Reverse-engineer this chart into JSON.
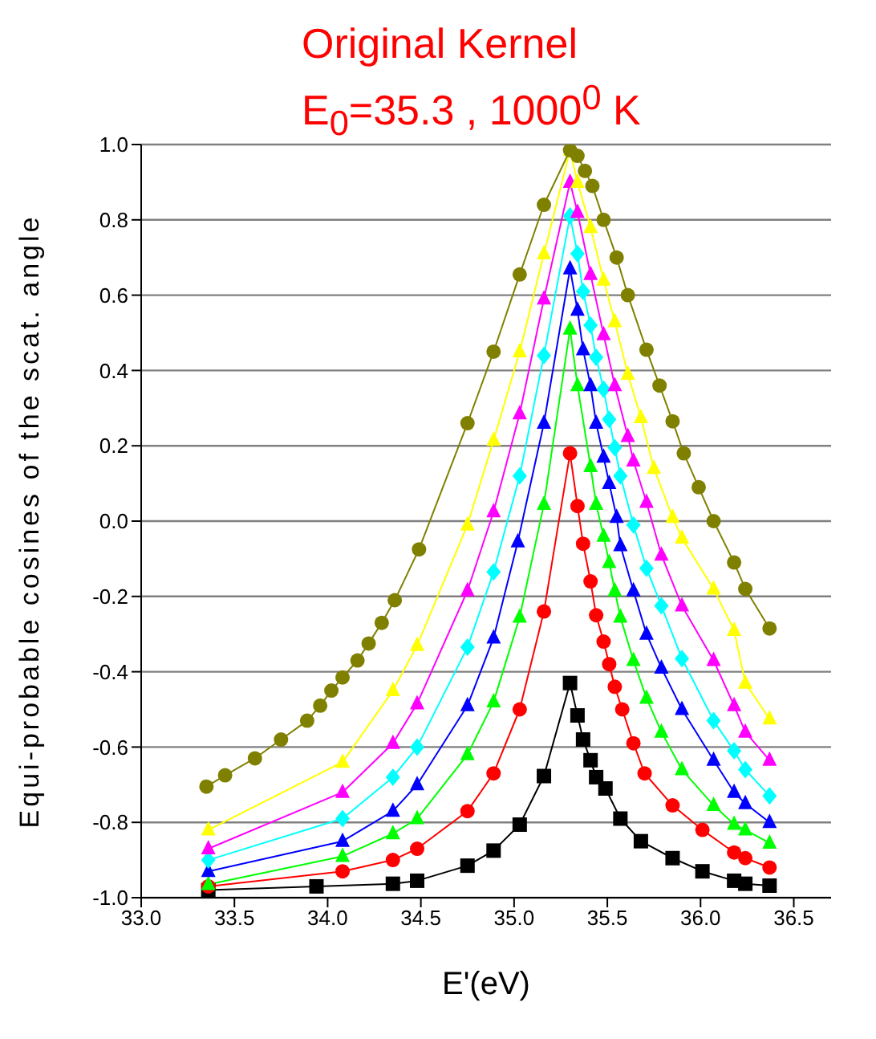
{
  "chart_data": {
    "type": "line",
    "title": "Original Kernel",
    "subtitle": "E$_{0}$=35.3 , 1000$^{0}$ K",
    "xlabel": "E'(eV)",
    "ylabel": "Equi-probable cosines of the scat. angle",
    "xlim": [
      33.0,
      36.7
    ],
    "ylim": [
      -1.0,
      1.0
    ],
    "xticks": [
      {
        "value": 33,
        "label": "33.0"
      },
      33.5,
      {
        "value": 34,
        "label": "34.0"
      },
      34.5,
      {
        "value": 35,
        "label": "35.0"
      },
      35.5,
      {
        "value": 36,
        "label": "36.0"
      },
      36.5
    ],
    "yticks": [
      {
        "value": -1,
        "label": "-1.0"
      },
      -0.8,
      -0.6,
      -0.4,
      -0.2,
      {
        "value": 0,
        "label": "0.0"
      },
      0.2,
      0.4,
      0.6,
      0.8,
      {
        "value": 1,
        "label": "1.0"
      }
    ],
    "grid": "y",
    "line_style": "solid",
    "series": [
      {
        "color": "#000000",
        "marker": "square",
        "x": [
          33.36,
          33.94,
          34.35,
          34.48,
          34.75,
          34.89,
          35.03,
          35.16,
          35.3,
          35.34,
          35.37,
          35.41,
          35.44,
          35.49,
          35.57,
          35.68,
          35.85,
          36.01,
          36.18,
          36.24,
          36.37
        ],
        "values": [
          -0.98,
          -0.97,
          -0.963,
          -0.955,
          -0.915,
          -0.875,
          -0.806,
          -0.677,
          -0.43,
          -0.516,
          -0.58,
          -0.635,
          -0.68,
          -0.71,
          -0.79,
          -0.85,
          -0.895,
          -0.93,
          -0.955,
          -0.963,
          -0.968
        ]
      },
      {
        "color": "#ff0000",
        "marker": "circle",
        "x": [
          33.36,
          34.08,
          34.35,
          34.48,
          34.75,
          34.89,
          35.03,
          35.16,
          35.3,
          35.34,
          35.37,
          35.41,
          35.44,
          35.48,
          35.51,
          35.54,
          35.58,
          35.64,
          35.7,
          35.85,
          36.01,
          36.18,
          36.24,
          36.37
        ],
        "values": [
          -0.97,
          -0.93,
          -0.9,
          -0.87,
          -0.77,
          -0.67,
          -0.5,
          -0.24,
          0.18,
          0.04,
          -0.06,
          -0.16,
          -0.25,
          -0.32,
          -0.38,
          -0.44,
          -0.5,
          -0.59,
          -0.67,
          -0.755,
          -0.82,
          -0.88,
          -0.895,
          -0.92
        ]
      },
      {
        "color": "#00ff00",
        "marker": "triangle",
        "x": [
          33.36,
          34.08,
          34.35,
          34.48,
          34.75,
          34.89,
          35.03,
          35.16,
          35.3,
          35.34,
          35.41,
          35.44,
          35.48,
          35.51,
          35.54,
          35.57,
          35.64,
          35.71,
          35.79,
          35.9,
          36.07,
          36.18,
          36.24,
          36.37
        ],
        "values": [
          -0.965,
          -0.89,
          -0.83,
          -0.79,
          -0.62,
          -0.48,
          -0.255,
          0.045,
          0.51,
          0.36,
          0.145,
          0.045,
          -0.04,
          -0.11,
          -0.185,
          -0.255,
          -0.37,
          -0.47,
          -0.56,
          -0.66,
          -0.755,
          -0.805,
          -0.82,
          -0.855
        ]
      },
      {
        "color": "#0000ff",
        "marker": "triangle",
        "x": [
          33.36,
          34.08,
          34.35,
          34.48,
          34.75,
          34.89,
          35.02,
          35.16,
          35.3,
          35.34,
          35.37,
          35.41,
          35.44,
          35.48,
          35.51,
          35.55,
          35.57,
          35.64,
          35.71,
          35.79,
          35.9,
          36.07,
          36.18,
          36.24,
          36.37
        ],
        "values": [
          -0.93,
          -0.85,
          -0.77,
          -0.7,
          -0.49,
          -0.31,
          -0.055,
          0.26,
          0.67,
          0.56,
          0.455,
          0.36,
          0.26,
          0.17,
          0.1,
          0.01,
          -0.065,
          -0.185,
          -0.3,
          -0.39,
          -0.5,
          -0.635,
          -0.72,
          -0.75,
          -0.8
        ]
      },
      {
        "color": "#00ffff",
        "marker": "diamond",
        "x": [
          33.36,
          34.08,
          34.35,
          34.48,
          34.75,
          34.89,
          35.03,
          35.16,
          35.3,
          35.34,
          35.37,
          35.41,
          35.44,
          35.48,
          35.51,
          35.54,
          35.57,
          35.64,
          35.71,
          35.79,
          35.9,
          36.07,
          36.18,
          36.24,
          36.37
        ],
        "values": [
          -0.9,
          -0.79,
          -0.68,
          -0.6,
          -0.335,
          -0.135,
          0.12,
          0.44,
          0.81,
          0.71,
          0.61,
          0.52,
          0.435,
          0.35,
          0.27,
          0.195,
          0.12,
          -0.01,
          -0.125,
          -0.225,
          -0.365,
          -0.53,
          -0.61,
          -0.66,
          -0.73
        ]
      },
      {
        "color": "#ff00ff",
        "marker": "triangle",
        "x": [
          33.36,
          34.08,
          34.35,
          34.48,
          34.75,
          34.89,
          35.03,
          35.16,
          35.3,
          35.34,
          35.41,
          35.48,
          35.54,
          35.61,
          35.64,
          35.71,
          35.79,
          35.9,
          36.07,
          36.18,
          36.24,
          36.37
        ],
        "values": [
          -0.87,
          -0.72,
          -0.59,
          -0.485,
          -0.185,
          0.025,
          0.285,
          0.59,
          0.9,
          0.82,
          0.655,
          0.495,
          0.36,
          0.225,
          0.16,
          0.05,
          -0.09,
          -0.225,
          -0.37,
          -0.49,
          -0.56,
          -0.635
        ]
      },
      {
        "color": "#ffff00",
        "marker": "triangle",
        "x": [
          33.36,
          34.08,
          34.35,
          34.48,
          34.75,
          34.89,
          35.03,
          35.16,
          35.3,
          35.34,
          35.41,
          35.48,
          35.54,
          35.61,
          35.68,
          35.75,
          35.85,
          35.9,
          36.07,
          36.18,
          36.24,
          36.37
        ],
        "values": [
          -0.82,
          -0.64,
          -0.45,
          -0.33,
          -0.01,
          0.215,
          0.45,
          0.71,
          0.985,
          0.9,
          0.78,
          0.64,
          0.53,
          0.39,
          0.275,
          0.14,
          0.01,
          -0.045,
          -0.18,
          -0.29,
          -0.43,
          -0.525
        ]
      },
      {
        "color": "#808000",
        "marker": "circle",
        "x": [
          33.35,
          33.45,
          33.61,
          33.75,
          33.89,
          33.96,
          34.02,
          34.08,
          34.16,
          34.22,
          34.29,
          34.36,
          34.49,
          34.75,
          34.89,
          35.03,
          35.16,
          35.3,
          35.34,
          35.38,
          35.42,
          35.48,
          35.55,
          35.61,
          35.71,
          35.78,
          35.85,
          35.91,
          35.99,
          36.07,
          36.18,
          36.24,
          36.37
        ],
        "values": [
          -0.705,
          -0.675,
          -0.63,
          -0.58,
          -0.53,
          -0.49,
          -0.45,
          -0.415,
          -0.37,
          -0.325,
          -0.27,
          -0.21,
          -0.075,
          0.26,
          0.45,
          0.655,
          0.84,
          0.985,
          0.97,
          0.93,
          0.89,
          0.8,
          0.7,
          0.6,
          0.455,
          0.36,
          0.265,
          0.18,
          0.09,
          0.0,
          -0.11,
          -0.18,
          -0.285
        ]
      }
    ]
  }
}
